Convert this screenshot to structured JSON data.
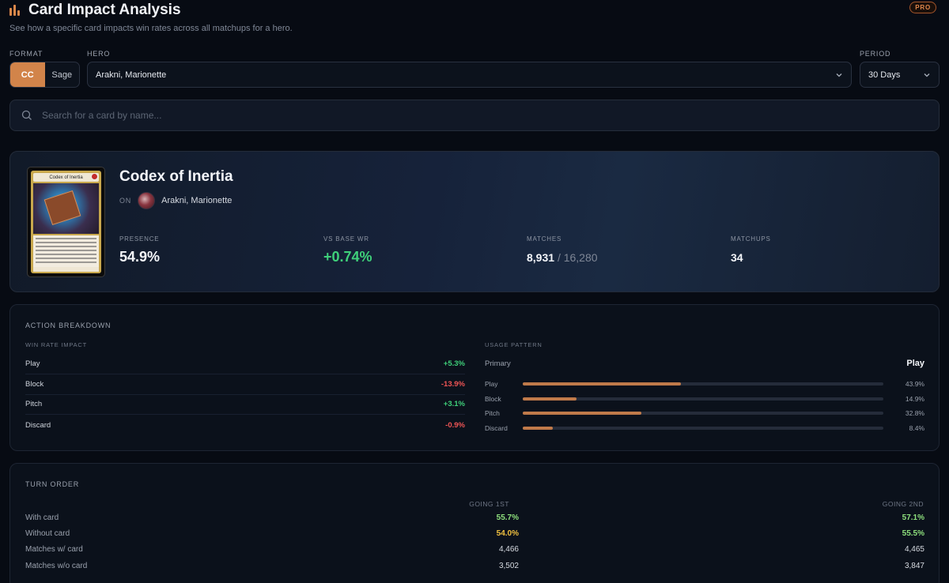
{
  "header": {
    "title": "Card Impact Analysis",
    "subtitle": "See how a specific card impacts win rates across all matchups for a hero.",
    "badge": "PRO"
  },
  "filters": {
    "format_label": "FORMAT",
    "format_options": [
      "CC",
      "Sage"
    ],
    "format_selected": "CC",
    "hero_label": "HERO",
    "hero_value": "Arakni, Marionette",
    "period_label": "PERIOD",
    "period_value": "30 Days"
  },
  "search": {
    "placeholder": "Search for a card by name..."
  },
  "card": {
    "name": "Codex of Inertia",
    "on_label": "ON",
    "hero": "Arakni, Marionette",
    "art_name": "Codex of Inertia",
    "pitch_color": "#c22b2b",
    "stats": {
      "presence_label": "PRESENCE",
      "presence_value": "54.9%",
      "vs_base_label": "VS BASE WR",
      "vs_base_value": "+0.74%",
      "matches_label": "MATCHES",
      "matches_value": "8,931",
      "matches_total": "/ 16,280",
      "matchups_label": "MATCHUPS",
      "matchups_value": "34"
    }
  },
  "action_breakdown": {
    "title": "ACTION BREAKDOWN",
    "win_rate_label": "WIN RATE IMPACT",
    "win_rate_rows": [
      {
        "name": "Play",
        "value": "+5.3%",
        "tone": "green"
      },
      {
        "name": "Block",
        "value": "-13.9%",
        "tone": "red"
      },
      {
        "name": "Pitch",
        "value": "+3.1%",
        "tone": "green"
      },
      {
        "name": "Discard",
        "value": "-0.9%",
        "tone": "red"
      }
    ],
    "usage_label": "USAGE PATTERN",
    "primary_label": "Primary",
    "primary_value": "Play",
    "usage_rows": [
      {
        "name": "Play",
        "pct": "43.9%",
        "fraction": 0.439
      },
      {
        "name": "Block",
        "pct": "14.9%",
        "fraction": 0.149
      },
      {
        "name": "Pitch",
        "pct": "32.8%",
        "fraction": 0.328
      },
      {
        "name": "Discard",
        "pct": "8.4%",
        "fraction": 0.084
      }
    ],
    "bar_color": "#c07a4a"
  },
  "turn_order": {
    "title": "TURN ORDER",
    "col1": "GOING 1ST",
    "col2": "GOING 2ND",
    "rows": [
      {
        "label": "With card",
        "v1": "55.7%",
        "v2": "57.1%",
        "t1": "lgreen",
        "t2": "lgreen"
      },
      {
        "label": "Without card",
        "v1": "54.0%",
        "v2": "55.5%",
        "t1": "yellow",
        "t2": "lgreen"
      },
      {
        "label": "Matches w/ card",
        "v1": "4,466",
        "v2": "4,465",
        "t1": "plain",
        "t2": "plain"
      },
      {
        "label": "Matches w/o card",
        "v1": "3,502",
        "v2": "3,847",
        "t1": "plain",
        "t2": "plain"
      }
    ]
  }
}
